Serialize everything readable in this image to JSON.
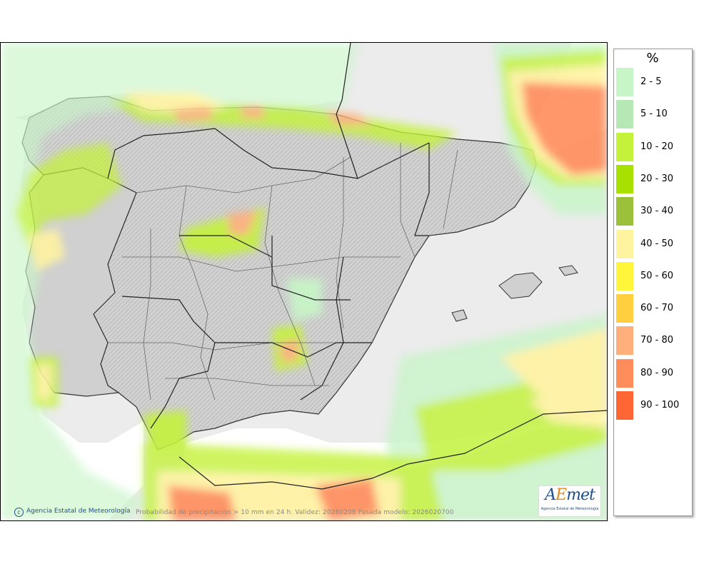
{
  "map": {
    "subject": "Iberian Peninsula precipitation probability map",
    "caption": "Probabilidad de precipitación > 10 mm en 24 h. Validez: 20260208 Pasada modelo: 2026020700",
    "credit": "Agencia Estatal de Meteorología",
    "credit_icon": "copyright-icon"
  },
  "logo": {
    "mark_a": "A",
    "mark_e": "E",
    "mark_rest": "met",
    "sub": "Agencia Estatal de Meteorología"
  },
  "legend": {
    "title": "%",
    "items": [
      {
        "label": "2 - 5",
        "color": "#c7f5c7"
      },
      {
        "label": "5 - 10",
        "color": "#b5e8b5"
      },
      {
        "label": "10 - 20",
        "color": "#c4f23a"
      },
      {
        "label": "20 - 30",
        "color": "#a8e000"
      },
      {
        "label": "30 - 40",
        "color": "#9bc13a"
      },
      {
        "label": "40 - 50",
        "color": "#fff3a0"
      },
      {
        "label": "50 - 60",
        "color": "#fff53a"
      },
      {
        "label": "60 - 70",
        "color": "#ffcf40"
      },
      {
        "label": "70 - 80",
        "color": "#ffb07a"
      },
      {
        "label": "80 - 90",
        "color": "#ff8c5a"
      },
      {
        "label": "90 - 100",
        "color": "#ff6633"
      }
    ]
  },
  "colors": {
    "sea": "#ffffff",
    "foreign_land": "#ebebeb",
    "terrain": "#cfcfcf",
    "borders": "#222222",
    "provinces": "#6a6a6a"
  }
}
